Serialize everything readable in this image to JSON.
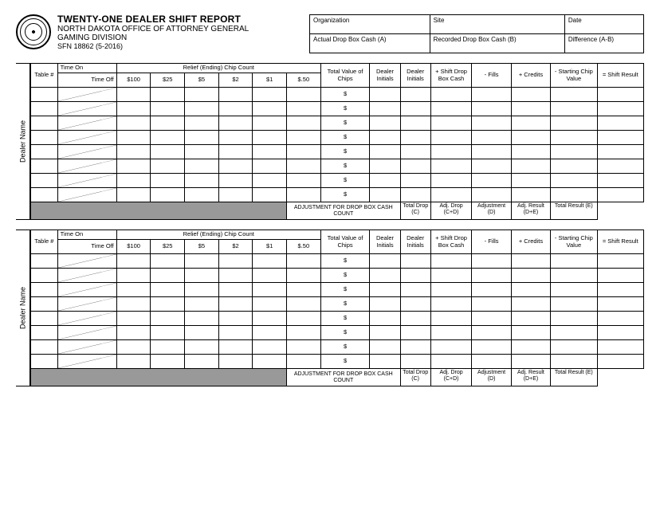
{
  "header": {
    "title": "TWENTY-ONE DEALER SHIFT REPORT",
    "subtitle1": "NORTH DAKOTA OFFICE OF ATTORNEY GENERAL",
    "subtitle2": "GAMING DIVISION",
    "form_no": "SFN 18862 (5-2016)"
  },
  "info": {
    "r1c1": "Organization",
    "r1c2": "Site",
    "r1c3": "Date",
    "r2c1": "Actual Drop Box Cash (A)",
    "r2c2": "Recorded Drop Box Cash (B)",
    "r2c3": "Difference (A-B)"
  },
  "table": {
    "dealer_label": "Dealer Name",
    "h_table": "Table #",
    "h_timeon": "Time On",
    "h_timeoff": "Time Off",
    "h_chipcount": "Relief (Ending) Chip Count",
    "h_100": "$100",
    "h_25": "$25",
    "h_5": "$5",
    "h_2": "$2",
    "h_1": "$1",
    "h_050": "$.50",
    "h_total": "Total Value of Chips",
    "h_di1": "Dealer Initials",
    "h_di2": "Dealer Initials",
    "h_shiftdrop": "+ Shift Drop Box Cash",
    "h_fills": "- Fills",
    "h_credits": "+ Credits",
    "h_startchip": "- Starting Chip Value",
    "h_result": "= Shift Result",
    "dollar": "$",
    "adj_label": "ADJUSTMENT FOR DROP BOX CASH COUNT",
    "f_totaldrop": "Total Drop (C)",
    "f_adjdrop": "Adj. Drop (C+D)",
    "f_adjustment": "Adjustment (D)",
    "f_adjresult": "Adj. Result (D+E)",
    "f_totalresult": "Total Result (E)"
  },
  "style": {
    "row_count": 8,
    "gray": "#999999",
    "border": "#000000"
  }
}
